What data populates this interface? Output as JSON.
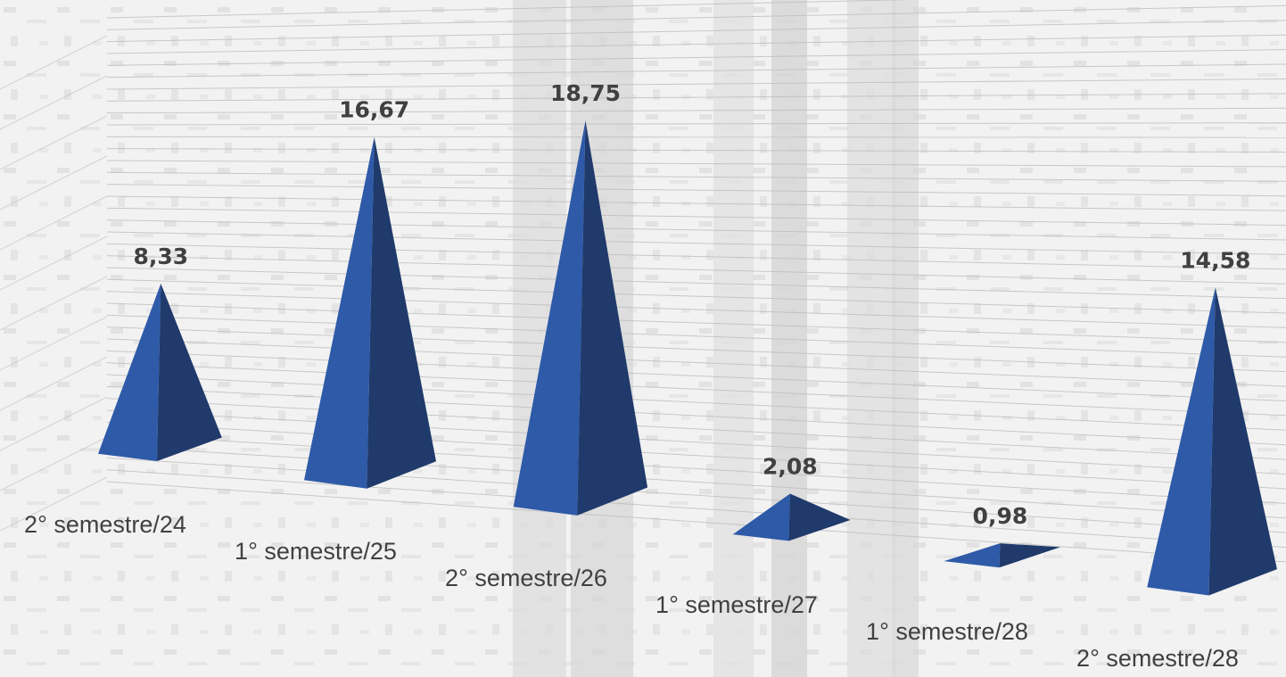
{
  "chart_data": {
    "type": "bar",
    "style": "3d-pyramid",
    "categories": [
      "2° semestre/24",
      "1° semestre/25",
      "2° semestre/26",
      "1° semestre/27",
      "1° semestre/28",
      "2° semestre/28"
    ],
    "values": [
      8.33,
      16.67,
      18.75,
      2.08,
      0.98,
      14.58
    ],
    "value_labels": [
      "8,33",
      "16,67",
      "18,75",
      "2,08",
      "0,98",
      "14,58"
    ],
    "title": "",
    "xlabel": "",
    "ylabel": "",
    "ylim": [
      0,
      20
    ],
    "grid": true,
    "legend": "none",
    "colors": {
      "front_face": "#2E5AA8",
      "side_face": "#1F3A6B",
      "grid_line": "#bdbdbd",
      "text": "#404040",
      "background": "#f2f2f2"
    }
  }
}
